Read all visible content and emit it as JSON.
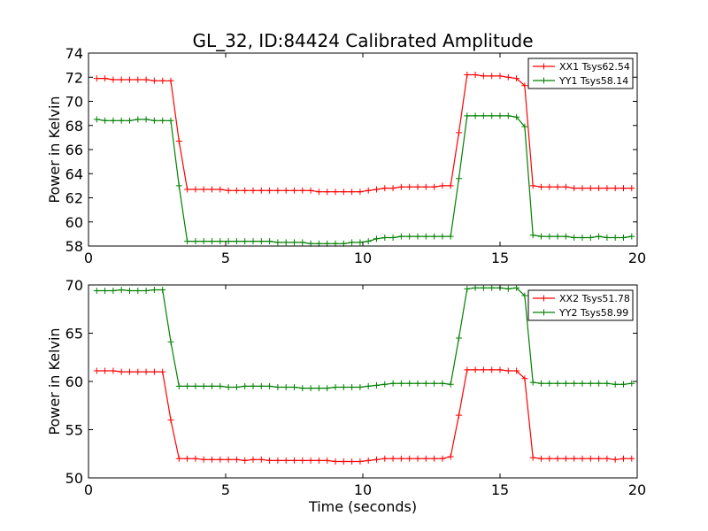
{
  "chart_data": [
    {
      "type": "line",
      "title": "GL_32, ID:84424 Calibrated Amplitude",
      "xlabel": "",
      "ylabel": "Power in Kelvin",
      "xlim": [
        0,
        20
      ],
      "ylim": [
        58,
        74
      ],
      "xticks": [
        "0",
        "5",
        "10",
        "15",
        "20"
      ],
      "yticks": [
        "58",
        "60",
        "62",
        "64",
        "66",
        "68",
        "70",
        "72",
        "74"
      ],
      "grid": false,
      "legend_position": "top-right",
      "x": [
        0.3,
        0.6,
        0.9,
        1.2,
        1.5,
        1.8,
        2.1,
        2.4,
        2.7,
        3.0,
        3.3,
        3.6,
        3.9,
        4.2,
        4.5,
        4.8,
        5.1,
        5.4,
        5.7,
        6.0,
        6.3,
        6.6,
        6.9,
        7.2,
        7.5,
        7.8,
        8.1,
        8.4,
        8.7,
        9.0,
        9.3,
        9.6,
        9.9,
        10.2,
        10.5,
        10.8,
        11.1,
        11.4,
        11.7,
        12.0,
        12.3,
        12.6,
        12.9,
        13.2,
        13.5,
        13.8,
        14.1,
        14.4,
        14.7,
        15.0,
        15.3,
        15.6,
        15.9,
        16.2,
        16.5,
        16.8,
        17.1,
        17.4,
        17.7,
        18.0,
        18.3,
        18.6,
        18.9,
        19.2,
        19.5,
        19.8
      ],
      "series": [
        {
          "name": "XX1 Tsys62.54",
          "color": "#ff0000",
          "values": [
            71.9,
            71.9,
            71.8,
            71.8,
            71.8,
            71.8,
            71.8,
            71.7,
            71.7,
            71.7,
            66.7,
            62.7,
            62.7,
            62.7,
            62.7,
            62.7,
            62.6,
            62.6,
            62.6,
            62.6,
            62.6,
            62.6,
            62.6,
            62.6,
            62.6,
            62.6,
            62.6,
            62.5,
            62.5,
            62.5,
            62.5,
            62.5,
            62.5,
            62.6,
            62.7,
            62.8,
            62.8,
            62.9,
            62.9,
            62.9,
            62.9,
            62.9,
            63.0,
            63.0,
            67.4,
            72.2,
            72.2,
            72.1,
            72.1,
            72.1,
            72.0,
            71.9,
            71.3,
            63.0,
            62.9,
            62.9,
            62.9,
            62.9,
            62.8,
            62.8,
            62.8,
            62.8,
            62.8,
            62.8,
            62.8,
            62.8
          ]
        },
        {
          "name": "YY1 Tsys58.14",
          "color": "#008000",
          "values": [
            68.5,
            68.4,
            68.4,
            68.4,
            68.4,
            68.5,
            68.5,
            68.4,
            68.4,
            68.4,
            63.0,
            58.4,
            58.4,
            58.4,
            58.4,
            58.4,
            58.4,
            58.4,
            58.4,
            58.4,
            58.4,
            58.4,
            58.3,
            58.3,
            58.3,
            58.3,
            58.2,
            58.2,
            58.2,
            58.2,
            58.2,
            58.3,
            58.3,
            58.4,
            58.6,
            58.7,
            58.7,
            58.8,
            58.8,
            58.8,
            58.8,
            58.8,
            58.8,
            58.8,
            63.6,
            68.8,
            68.8,
            68.8,
            68.8,
            68.8,
            68.8,
            68.7,
            67.9,
            58.9,
            58.8,
            58.8,
            58.8,
            58.8,
            58.7,
            58.7,
            58.7,
            58.8,
            58.7,
            58.7,
            58.7,
            58.8
          ]
        }
      ]
    },
    {
      "type": "line",
      "title": "",
      "xlabel": "Time (seconds)",
      "ylabel": "Power in Kelvin",
      "xlim": [
        0,
        20
      ],
      "ylim": [
        50,
        70
      ],
      "xticks": [
        "0",
        "5",
        "10",
        "15",
        "20"
      ],
      "yticks": [
        "50",
        "55",
        "60",
        "65",
        "70"
      ],
      "grid": false,
      "legend_position": "top-right",
      "x": [
        0.3,
        0.6,
        0.9,
        1.2,
        1.5,
        1.8,
        2.1,
        2.4,
        2.7,
        3.0,
        3.3,
        3.6,
        3.9,
        4.2,
        4.5,
        4.8,
        5.1,
        5.4,
        5.7,
        6.0,
        6.3,
        6.6,
        6.9,
        7.2,
        7.5,
        7.8,
        8.1,
        8.4,
        8.7,
        9.0,
        9.3,
        9.6,
        9.9,
        10.2,
        10.5,
        10.8,
        11.1,
        11.4,
        11.7,
        12.0,
        12.3,
        12.6,
        12.9,
        13.2,
        13.5,
        13.8,
        14.1,
        14.4,
        14.7,
        15.0,
        15.3,
        15.6,
        15.9,
        16.2,
        16.5,
        16.8,
        17.1,
        17.4,
        17.7,
        18.0,
        18.3,
        18.6,
        18.9,
        19.2,
        19.5,
        19.8
      ],
      "series": [
        {
          "name": "XX2 Tsys51.78",
          "color": "#ff0000",
          "values": [
            61.1,
            61.1,
            61.1,
            61.0,
            61.0,
            61.0,
            61.0,
            61.0,
            61.0,
            56.0,
            52.0,
            52.0,
            52.0,
            51.9,
            51.9,
            51.9,
            51.9,
            51.9,
            51.8,
            51.9,
            51.9,
            51.8,
            51.8,
            51.8,
            51.8,
            51.8,
            51.8,
            51.8,
            51.8,
            51.7,
            51.7,
            51.7,
            51.7,
            51.8,
            51.9,
            52.0,
            52.0,
            52.0,
            52.0,
            52.0,
            52.0,
            52.0,
            52.0,
            52.2,
            56.5,
            61.2,
            61.2,
            61.2,
            61.2,
            61.2,
            61.1,
            61.1,
            60.3,
            52.1,
            52.0,
            52.0,
            52.0,
            52.0,
            52.0,
            52.0,
            52.0,
            52.0,
            52.0,
            51.9,
            52.0,
            52.0
          ]
        },
        {
          "name": "YY2 Tsys58.99",
          "color": "#008000",
          "values": [
            69.4,
            69.4,
            69.4,
            69.5,
            69.4,
            69.4,
            69.4,
            69.5,
            69.5,
            64.1,
            59.5,
            59.5,
            59.5,
            59.5,
            59.5,
            59.5,
            59.4,
            59.4,
            59.5,
            59.5,
            59.5,
            59.5,
            59.4,
            59.4,
            59.4,
            59.3,
            59.3,
            59.3,
            59.3,
            59.4,
            59.4,
            59.4,
            59.4,
            59.5,
            59.6,
            59.7,
            59.8,
            59.8,
            59.8,
            59.8,
            59.8,
            59.8,
            59.8,
            59.7,
            64.5,
            69.6,
            69.7,
            69.7,
            69.7,
            69.7,
            69.6,
            69.7,
            68.9,
            59.9,
            59.8,
            59.8,
            59.8,
            59.8,
            59.8,
            59.8,
            59.8,
            59.8,
            59.8,
            59.7,
            59.7,
            59.8
          ]
        }
      ]
    }
  ]
}
